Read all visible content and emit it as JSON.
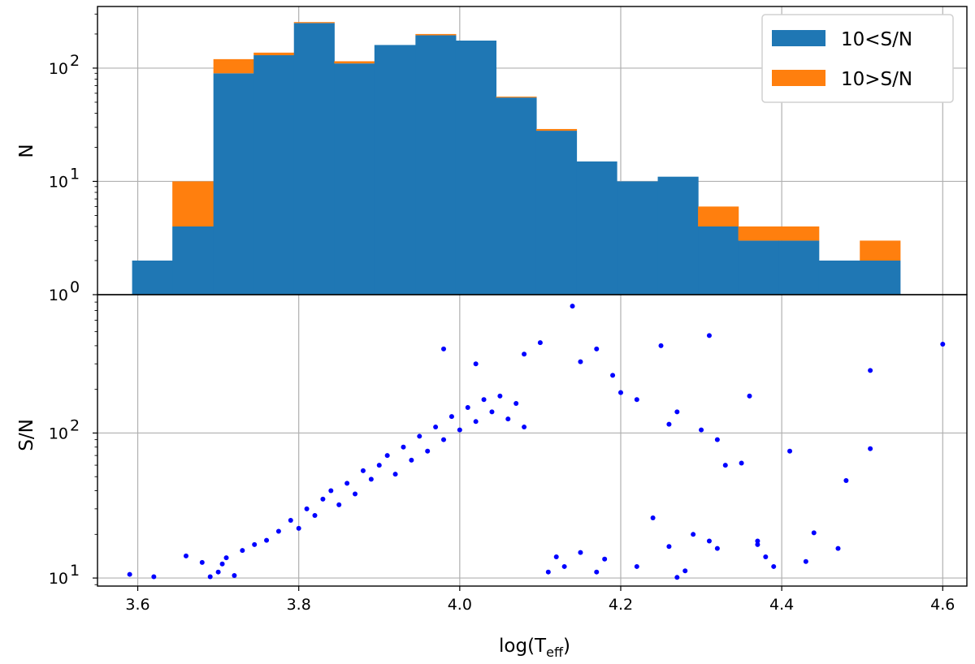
{
  "chart_data": [
    {
      "type": "histogram",
      "panel": "top",
      "stacked": true,
      "yscale": "log",
      "ylim": [
        1,
        350
      ],
      "xlim": [
        3.55,
        4.63
      ],
      "ylabel": "N",
      "yticks": [
        {
          "value": 1,
          "base": "10",
          "exp": "0"
        },
        {
          "value": 10,
          "base": "10",
          "exp": "1"
        },
        {
          "value": 100,
          "base": "10",
          "exp": "2"
        }
      ],
      "bin_edges": [
        3.593,
        3.643,
        3.694,
        3.744,
        3.794,
        3.844,
        3.894,
        3.945,
        3.995,
        4.045,
        4.095,
        4.145,
        4.195,
        4.246,
        4.296,
        4.346,
        4.396,
        4.446,
        4.497,
        4.547
      ],
      "series": [
        {
          "name": "10<S/N",
          "values": [
            2,
            4,
            90,
            130,
            250,
            110,
            160,
            195,
            175,
            55,
            28,
            15,
            10,
            11,
            4,
            3,
            3,
            2,
            2
          ]
        },
        {
          "name": "10>S/N",
          "values": [
            0,
            6,
            30,
            7,
            5,
            5,
            0,
            5,
            0,
            1,
            1,
            0,
            0,
            0,
            2,
            1,
            1,
            0,
            1
          ]
        }
      ],
      "legend": {
        "location": "upper right",
        "entries": [
          "10<S/N",
          "10>S/N"
        ]
      },
      "colors": {
        "series_1": "#1f77b4",
        "series_2": "#ff7f0e"
      },
      "grid": true
    },
    {
      "type": "scatter",
      "panel": "bottom",
      "yscale": "log",
      "ylim": [
        8.8,
        900
      ],
      "xlim": [
        3.55,
        4.63
      ],
      "xlabel": "log(T",
      "xlabel_sub": "eff",
      "xlabel_close": ")",
      "ylabel": "S/N",
      "xticks": [
        "3.6",
        "3.8",
        "4.0",
        "4.2",
        "4.4",
        "4.6"
      ],
      "yticks": [
        {
          "value": 10,
          "base": "10",
          "exp": "1"
        },
        {
          "value": 100,
          "base": "10",
          "exp": "2"
        }
      ],
      "marker_color": "#0000ff",
      "grid": true,
      "points": [
        [
          3.59,
          10.6
        ],
        [
          3.62,
          10.2
        ],
        [
          3.66,
          14.2
        ],
        [
          3.68,
          12.8
        ],
        [
          3.69,
          10.2
        ],
        [
          3.7,
          11.0
        ],
        [
          3.705,
          12.5
        ],
        [
          3.71,
          13.8
        ],
        [
          3.72,
          10.4
        ],
        [
          3.73,
          15.5
        ],
        [
          3.745,
          17.0
        ],
        [
          3.76,
          18.2
        ],
        [
          3.775,
          21.0
        ],
        [
          3.79,
          25.0
        ],
        [
          3.8,
          22.0
        ],
        [
          3.81,
          30.0
        ],
        [
          3.82,
          27.0
        ],
        [
          3.83,
          35.0
        ],
        [
          3.84,
          40.0
        ],
        [
          3.85,
          32.0
        ],
        [
          3.86,
          45.0
        ],
        [
          3.87,
          38.0
        ],
        [
          3.88,
          55.0
        ],
        [
          3.89,
          48.0
        ],
        [
          3.9,
          60.0
        ],
        [
          3.91,
          70.0
        ],
        [
          3.92,
          52.0
        ],
        [
          3.93,
          80.0
        ],
        [
          3.94,
          65.0
        ],
        [
          3.95,
          95.0
        ],
        [
          3.96,
          75.0
        ],
        [
          3.97,
          110.0
        ],
        [
          3.98,
          90.0
        ],
        [
          3.99,
          130.0
        ],
        [
          4.0,
          105.0
        ],
        [
          4.01,
          150.0
        ],
        [
          4.02,
          120.0
        ],
        [
          4.03,
          170.0
        ],
        [
          4.04,
          140.0
        ],
        [
          4.05,
          180.0
        ],
        [
          4.06,
          125.0
        ],
        [
          4.07,
          160.0
        ],
        [
          4.08,
          110.0
        ],
        [
          3.98,
          380.0
        ],
        [
          4.02,
          300.0
        ],
        [
          4.08,
          350.0
        ],
        [
          4.1,
          420.0
        ],
        [
          4.14,
          750.0
        ],
        [
          4.15,
          310.0
        ],
        [
          4.17,
          380.0
        ],
        [
          4.19,
          250.0
        ],
        [
          4.2,
          190.0
        ],
        [
          4.22,
          170.0
        ],
        [
          4.25,
          400.0
        ],
        [
          4.26,
          115.0
        ],
        [
          4.27,
          140.0
        ],
        [
          4.3,
          105.0
        ],
        [
          4.31,
          470.0
        ],
        [
          4.32,
          90.0
        ],
        [
          4.33,
          60.0
        ],
        [
          4.35,
          62.0
        ],
        [
          4.36,
          180.0
        ],
        [
          4.37,
          17.0
        ],
        [
          4.38,
          14.0
        ],
        [
          4.41,
          75.0
        ],
        [
          4.43,
          13.0
        ],
        [
          4.44,
          20.5
        ],
        [
          4.47,
          16.0
        ],
        [
          4.48,
          47.0
        ],
        [
          4.51,
          78.0
        ],
        [
          4.51,
          270.0
        ],
        [
          4.6,
          410.0
        ],
        [
          4.39,
          12.0
        ],
        [
          4.37,
          18.0
        ],
        [
          4.24,
          26.0
        ],
        [
          4.26,
          16.5
        ],
        [
          4.28,
          11.2
        ],
        [
          4.29,
          20.0
        ],
        [
          4.27,
          10.1
        ],
        [
          4.31,
          18.0
        ],
        [
          4.32,
          16.0
        ],
        [
          4.15,
          15.0
        ],
        [
          4.13,
          12.0
        ],
        [
          4.11,
          11.0
        ],
        [
          4.17,
          11.0
        ],
        [
          4.18,
          13.5
        ],
        [
          4.22,
          12.0
        ],
        [
          4.12,
          14.0
        ]
      ]
    }
  ]
}
